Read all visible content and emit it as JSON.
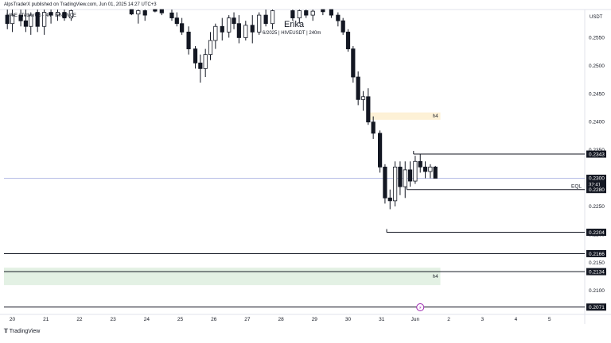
{
  "header": {
    "publisher": "AlpsTraderX published on TradingView.com, Jun 01, 2025 14:27 UTC+3",
    "symbol_line": "HIVE / TetherUS · 4h · BINANCE"
  },
  "watermark": {
    "name": "Erika",
    "detail": "6/2025 | HIVEUSDT | 240m"
  },
  "footer": {
    "logo_text": "TradingView"
  },
  "chart_data": {
    "type": "candlestick",
    "currency": "USDT",
    "y_ticks": [
      0.255,
      0.25,
      0.245,
      0.24,
      0.235,
      0.23,
      0.225,
      0.22,
      0.215,
      0.21
    ],
    "ylim": [
      0.2065,
      0.26
    ],
    "x_ticks": [
      "20",
      "21",
      "22",
      "23",
      "24",
      "25",
      "26",
      "27",
      "28",
      "29",
      "30",
      "31",
      "Jun",
      "2",
      "3",
      "4",
      "5"
    ],
    "xlim": [
      0,
      17.3
    ],
    "price_labels": [
      {
        "value": "0.2343",
        "price": 0.2343,
        "style": "line",
        "x_start": 12.2
      },
      {
        "value": "0.2300",
        "price": 0.23,
        "style": "current",
        "countdown": "32:41"
      },
      {
        "value": "0.2280",
        "price": 0.228,
        "style": "line",
        "x_start": 12.0,
        "tag": "EQL"
      },
      {
        "value": "0.2204",
        "price": 0.2204,
        "style": "line",
        "x_start": 11.4
      },
      {
        "value": "0.2166",
        "price": 0.2166,
        "style": "line",
        "x_start": 0
      },
      {
        "value": "0.2134",
        "price": 0.2134,
        "style": "line",
        "x_start": 0
      },
      {
        "value": "0.2071",
        "price": 0.2071,
        "style": "line",
        "x_start": 0
      }
    ],
    "zones": [
      {
        "label": "h4",
        "x0": 10.8,
        "x1": 13.0,
        "y_top": 0.2417,
        "y_bottom": 0.2404,
        "color": "#fdf1d6"
      },
      {
        "label": "h4",
        "x0": 0,
        "x1": 13.0,
        "y_top": 0.2141,
        "y_bottom": 0.211,
        "color": "#e3f1e4"
      }
    ],
    "candles": [
      {
        "x": 0.1,
        "o": 0.259,
        "h": 0.26,
        "l": 0.2565,
        "c": 0.2575
      },
      {
        "x": 0.25,
        "o": 0.2575,
        "h": 0.26,
        "l": 0.256,
        "c": 0.259
      },
      {
        "x": 0.5,
        "o": 0.259,
        "h": 0.26,
        "l": 0.257,
        "c": 0.258
      },
      {
        "x": 0.65,
        "o": 0.258,
        "h": 0.26,
        "l": 0.256,
        "c": 0.257
      },
      {
        "x": 0.8,
        "o": 0.257,
        "h": 0.2595,
        "l": 0.2555,
        "c": 0.259
      },
      {
        "x": 1.0,
        "o": 0.2595,
        "h": 0.26,
        "l": 0.256,
        "c": 0.257
      },
      {
        "x": 1.2,
        "o": 0.257,
        "h": 0.26,
        "l": 0.2555,
        "c": 0.2595
      },
      {
        "x": 1.4,
        "o": 0.2595,
        "h": 0.26,
        "l": 0.2575,
        "c": 0.259
      },
      {
        "x": 1.6,
        "o": 0.259,
        "h": 0.26,
        "l": 0.258,
        "c": 0.2595
      },
      {
        "x": 1.8,
        "o": 0.2595,
        "h": 0.26,
        "l": 0.258,
        "c": 0.2585
      },
      {
        "x": 2.0,
        "o": 0.2585,
        "h": 0.26,
        "l": 0.258,
        "c": 0.2598
      },
      {
        "x": 3.8,
        "o": 0.26,
        "h": 0.26,
        "l": 0.259,
        "c": 0.2592
      },
      {
        "x": 4.0,
        "o": 0.2592,
        "h": 0.26,
        "l": 0.2575,
        "c": 0.2598
      },
      {
        "x": 4.2,
        "o": 0.2598,
        "h": 0.26,
        "l": 0.258,
        "c": 0.259
      },
      {
        "x": 4.5,
        "o": 0.26,
        "h": 0.26,
        "l": 0.2595,
        "c": 0.2597
      },
      {
        "x": 4.7,
        "o": 0.26,
        "h": 0.26,
        "l": 0.259,
        "c": 0.2594
      },
      {
        "x": 5.0,
        "o": 0.2594,
        "h": 0.26,
        "l": 0.258,
        "c": 0.2585
      },
      {
        "x": 5.15,
        "o": 0.2585,
        "h": 0.2595,
        "l": 0.257,
        "c": 0.2575
      },
      {
        "x": 5.3,
        "o": 0.2575,
        "h": 0.2585,
        "l": 0.2555,
        "c": 0.256
      },
      {
        "x": 5.5,
        "o": 0.256,
        "h": 0.257,
        "l": 0.252,
        "c": 0.253
      },
      {
        "x": 5.7,
        "o": 0.253,
        "h": 0.2535,
        "l": 0.2495,
        "c": 0.2505
      },
      {
        "x": 5.85,
        "o": 0.2505,
        "h": 0.252,
        "l": 0.247,
        "c": 0.2495
      },
      {
        "x": 6.0,
        "o": 0.2495,
        "h": 0.253,
        "l": 0.248,
        "c": 0.252
      },
      {
        "x": 6.15,
        "o": 0.252,
        "h": 0.256,
        "l": 0.251,
        "c": 0.2545
      },
      {
        "x": 6.3,
        "o": 0.2545,
        "h": 0.2575,
        "l": 0.253,
        "c": 0.257
      },
      {
        "x": 6.5,
        "o": 0.257,
        "h": 0.2585,
        "l": 0.2545,
        "c": 0.256
      },
      {
        "x": 6.7,
        "o": 0.256,
        "h": 0.259,
        "l": 0.255,
        "c": 0.2585
      },
      {
        "x": 6.85,
        "o": 0.2585,
        "h": 0.2595,
        "l": 0.2565,
        "c": 0.2575
      },
      {
        "x": 7.0,
        "o": 0.2575,
        "h": 0.259,
        "l": 0.254,
        "c": 0.255
      },
      {
        "x": 7.2,
        "o": 0.255,
        "h": 0.258,
        "l": 0.2545,
        "c": 0.2572
      },
      {
        "x": 7.4,
        "o": 0.2572,
        "h": 0.259,
        "l": 0.254,
        "c": 0.256
      },
      {
        "x": 7.6,
        "o": 0.256,
        "h": 0.2595,
        "l": 0.2555,
        "c": 0.259
      },
      {
        "x": 7.8,
        "o": 0.259,
        "h": 0.26,
        "l": 0.257,
        "c": 0.2575
      },
      {
        "x": 8.0,
        "o": 0.2575,
        "h": 0.26,
        "l": 0.2565,
        "c": 0.2598
      },
      {
        "x": 8.6,
        "o": 0.2598,
        "h": 0.26,
        "l": 0.258,
        "c": 0.2585
      },
      {
        "x": 8.8,
        "o": 0.2585,
        "h": 0.26,
        "l": 0.2575,
        "c": 0.2598
      },
      {
        "x": 9.0,
        "o": 0.2598,
        "h": 0.26,
        "l": 0.2585,
        "c": 0.259
      },
      {
        "x": 9.2,
        "o": 0.259,
        "h": 0.26,
        "l": 0.258,
        "c": 0.2597
      },
      {
        "x": 9.5,
        "o": 0.26,
        "h": 0.26,
        "l": 0.259,
        "c": 0.2596
      },
      {
        "x": 9.75,
        "o": 0.26,
        "h": 0.26,
        "l": 0.2585,
        "c": 0.259
      },
      {
        "x": 9.95,
        "o": 0.259,
        "h": 0.2595,
        "l": 0.257,
        "c": 0.258
      },
      {
        "x": 10.1,
        "o": 0.258,
        "h": 0.2585,
        "l": 0.2555,
        "c": 0.256
      },
      {
        "x": 10.25,
        "o": 0.256,
        "h": 0.2565,
        "l": 0.2525,
        "c": 0.253
      },
      {
        "x": 10.4,
        "o": 0.253,
        "h": 0.2535,
        "l": 0.247,
        "c": 0.248
      },
      {
        "x": 10.55,
        "o": 0.248,
        "h": 0.249,
        "l": 0.243,
        "c": 0.244
      },
      {
        "x": 10.7,
        "o": 0.244,
        "h": 0.2455,
        "l": 0.242,
        "c": 0.2445
      },
      {
        "x": 10.85,
        "o": 0.2445,
        "h": 0.246,
        "l": 0.2395,
        "c": 0.24
      },
      {
        "x": 11.0,
        "o": 0.24,
        "h": 0.241,
        "l": 0.237,
        "c": 0.238
      },
      {
        "x": 11.2,
        "o": 0.238,
        "h": 0.2385,
        "l": 0.231,
        "c": 0.232
      },
      {
        "x": 11.35,
        "o": 0.232,
        "h": 0.2325,
        "l": 0.2255,
        "c": 0.2265
      },
      {
        "x": 11.5,
        "o": 0.2265,
        "h": 0.228,
        "l": 0.2245,
        "c": 0.226
      },
      {
        "x": 11.65,
        "o": 0.226,
        "h": 0.233,
        "l": 0.225,
        "c": 0.232
      },
      {
        "x": 11.8,
        "o": 0.232,
        "h": 0.233,
        "l": 0.227,
        "c": 0.2285
      },
      {
        "x": 11.95,
        "o": 0.2285,
        "h": 0.233,
        "l": 0.2265,
        "c": 0.2315
      },
      {
        "x": 12.1,
        "o": 0.2315,
        "h": 0.233,
        "l": 0.2285,
        "c": 0.2295
      },
      {
        "x": 12.25,
        "o": 0.2295,
        "h": 0.234,
        "l": 0.229,
        "c": 0.233
      },
      {
        "x": 12.4,
        "o": 0.233,
        "h": 0.2343,
        "l": 0.231,
        "c": 0.232
      },
      {
        "x": 12.55,
        "o": 0.232,
        "h": 0.233,
        "l": 0.23,
        "c": 0.2312
      },
      {
        "x": 12.7,
        "o": 0.2312,
        "h": 0.2325,
        "l": 0.23,
        "c": 0.232
      },
      {
        "x": 12.85,
        "o": 0.232,
        "h": 0.2322,
        "l": 0.23,
        "c": 0.23
      }
    ]
  }
}
